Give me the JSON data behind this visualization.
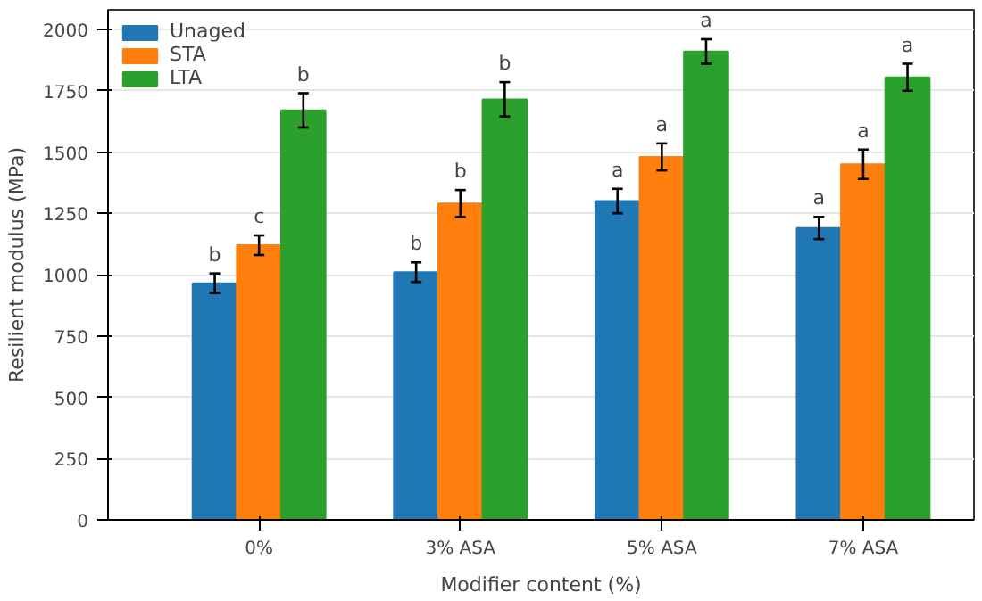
{
  "chart_data": {
    "type": "bar",
    "xlabel": "Modifier content (%)",
    "ylabel": "Resilient modulus (MPa)",
    "categories": [
      "0%",
      "3% ASA",
      "5% ASA",
      "7% ASA"
    ],
    "series": [
      {
        "name": "Unaged",
        "color": "#1f77b4",
        "values": [
          965,
          1010,
          1300,
          1190
        ],
        "errors": [
          40,
          40,
          50,
          45
        ],
        "value_labels": [
          "b",
          "b",
          "a",
          "a"
        ]
      },
      {
        "name": "STA",
        "color": "#ff7f0e",
        "values": [
          1120,
          1290,
          1480,
          1450
        ],
        "errors": [
          40,
          55,
          55,
          60
        ],
        "value_labels": [
          "c",
          "b",
          "a",
          "a"
        ]
      },
      {
        "name": "LTA",
        "color": "#2ca02c",
        "values": [
          1670,
          1715,
          1910,
          1805
        ],
        "errors": [
          70,
          70,
          50,
          55
        ],
        "value_labels": [
          "b",
          "b",
          "a",
          "a"
        ]
      }
    ],
    "ylim": [
      0,
      2080
    ],
    "yticks": [
      0,
      250,
      500,
      750,
      1000,
      1250,
      1500,
      1750,
      2000
    ],
    "grid": "y",
    "legend": "top left"
  }
}
